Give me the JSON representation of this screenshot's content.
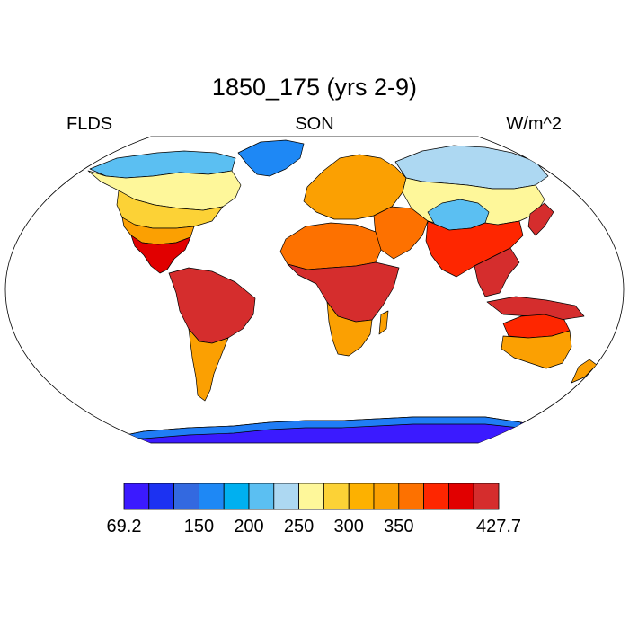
{
  "title": "1850_175 (yrs 2-9)",
  "labels": {
    "left": "FLDS",
    "center": "SON",
    "right": "W/m^2"
  },
  "map": {
    "projection": "Robinson",
    "ocean_color": "#ffffff",
    "coastline_color": "#000000",
    "regions": [
      {
        "name": "north-america-arctic",
        "color": "#5bbff2"
      },
      {
        "name": "north-america-north",
        "color": "#fef79a"
      },
      {
        "name": "north-america-central",
        "color": "#fcd236"
      },
      {
        "name": "north-america-south",
        "color": "#fba002"
      },
      {
        "name": "central-america",
        "color": "#e10000"
      },
      {
        "name": "greenland",
        "color": "#1e88f5"
      },
      {
        "name": "south-america",
        "color": "#d52d2d"
      },
      {
        "name": "south-america-south",
        "color": "#fba002"
      },
      {
        "name": "europe",
        "color": "#fba002"
      },
      {
        "name": "siberia",
        "color": "#add8f2"
      },
      {
        "name": "central-asia",
        "color": "#fef79a"
      },
      {
        "name": "tibet",
        "color": "#5bbff2"
      },
      {
        "name": "africa-north",
        "color": "#fd7100"
      },
      {
        "name": "africa-central",
        "color": "#d52d2d"
      },
      {
        "name": "africa-south",
        "color": "#fba002"
      },
      {
        "name": "middle-east",
        "color": "#fd7100"
      },
      {
        "name": "south-asia",
        "color": "#fe2600"
      },
      {
        "name": "southeast-asia",
        "color": "#d52d2d"
      },
      {
        "name": "australia",
        "color": "#fba002"
      },
      {
        "name": "australia-north",
        "color": "#fe2600"
      },
      {
        "name": "antarctica",
        "color": "#3b1aff"
      },
      {
        "name": "antarctica-coast",
        "color": "#1e88f5"
      }
    ]
  },
  "colorbar": {
    "colors": [
      "#3b1aff",
      "#1c32f2",
      "#3369e0",
      "#1e88f5",
      "#00b0f0",
      "#5bbff2",
      "#add8f2",
      "#fef79a",
      "#fcd236",
      "#fdb100",
      "#fba002",
      "#fd7100",
      "#fe2600",
      "#e10000",
      "#d52d2d"
    ],
    "tick_labels": [
      {
        "text": "69.2",
        "boundary": 0
      },
      {
        "text": "150",
        "boundary": 3
      },
      {
        "text": "200",
        "boundary": 5
      },
      {
        "text": "250",
        "boundary": 7
      },
      {
        "text": "300",
        "boundary": 9
      },
      {
        "text": "350",
        "boundary": 11
      },
      {
        "text": "427.7",
        "boundary": 15
      }
    ]
  }
}
